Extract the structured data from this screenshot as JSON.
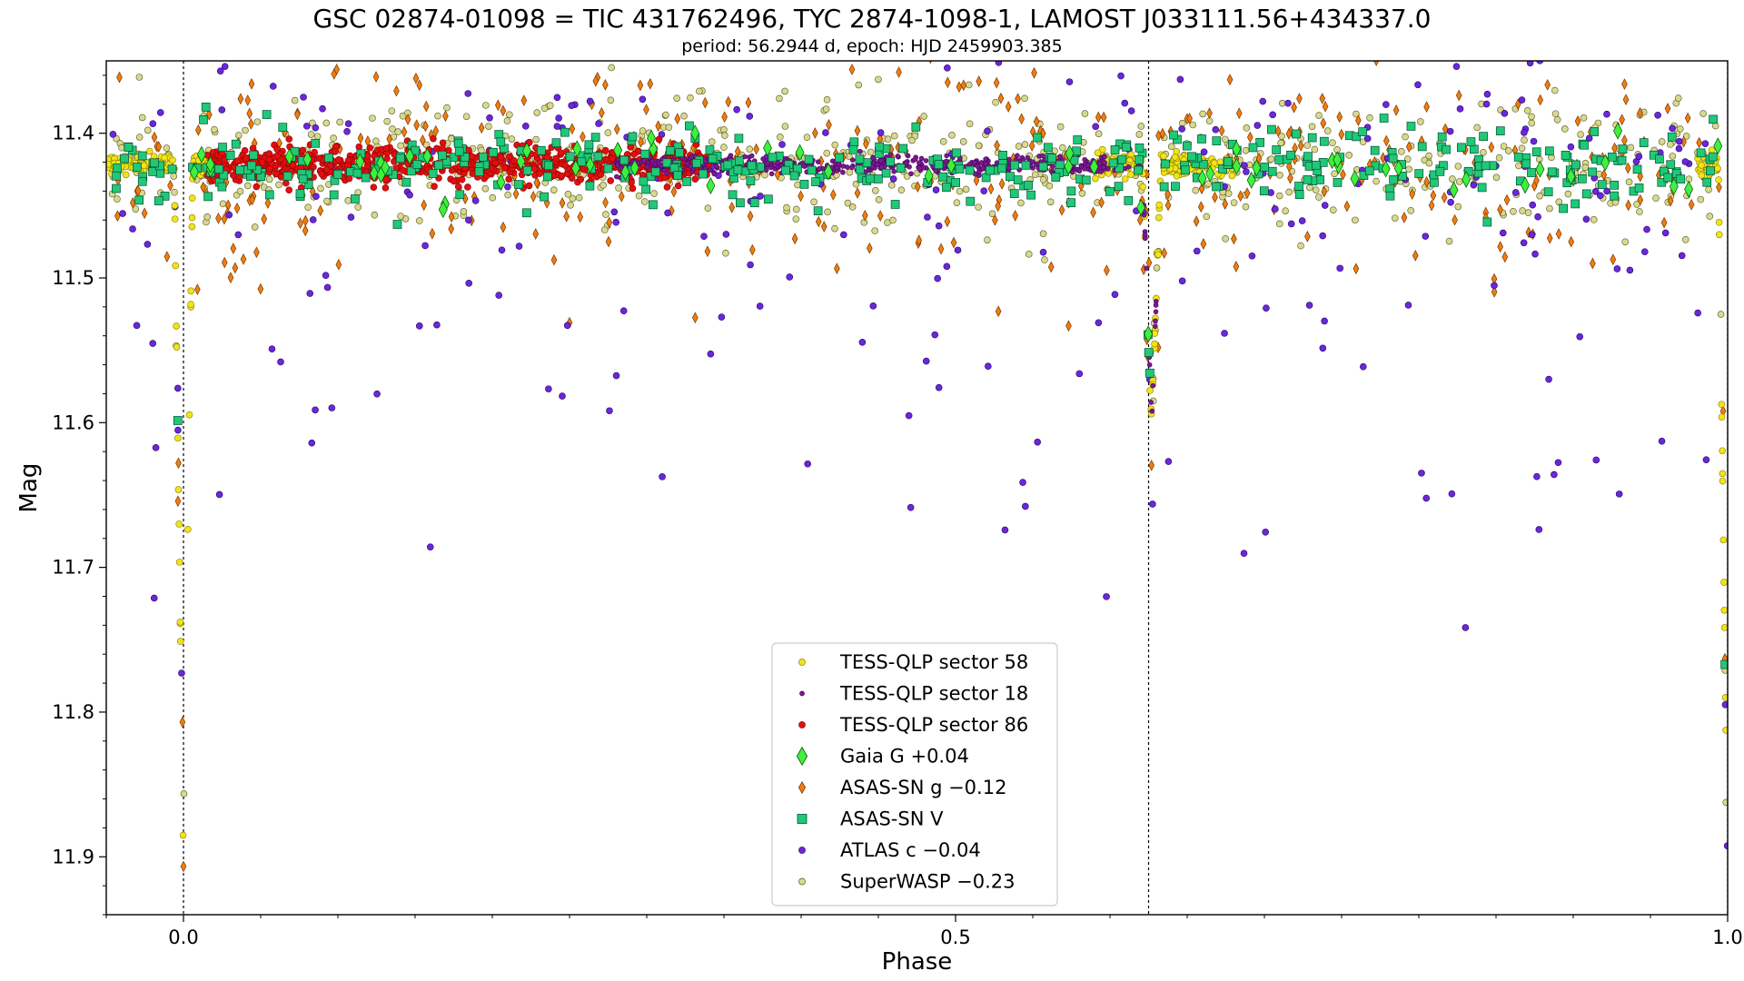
{
  "chart_data": {
    "type": "scatter",
    "title": "GSC 02874-01098 = TIC 431762496, TYC 2874-1098-1, LAMOST J033111.56+434337.0",
    "subtitle": "period: 56.2944 d, epoch: HJD 2459903.385",
    "xlabel": "Phase",
    "ylabel": "Mag",
    "xlim": [
      -0.05,
      1.0
    ],
    "ylim": [
      11.94,
      11.35
    ],
    "y_inverted": true,
    "x_ticks": [
      0.0,
      0.5,
      1.0
    ],
    "x_tick_labels": [
      "0.0",
      "0.5",
      "1.0"
    ],
    "y_ticks": [
      11.4,
      11.5,
      11.6,
      11.7,
      11.8,
      11.9
    ],
    "y_tick_labels": [
      "11.4",
      "11.5",
      "11.6",
      "11.7",
      "11.8",
      "11.9"
    ],
    "vertical_lines": [
      0.0,
      0.625,
      1.0
    ],
    "legend_position": "lower-center",
    "grid": false,
    "model": {
      "baseline_mag": 11.422,
      "primary_eclipse": {
        "phase": 0.0,
        "depth_mag": 11.9,
        "half_width": 0.006
      },
      "secondary_eclipse": {
        "phase": 0.627,
        "depth_mag": 11.6,
        "half_width": 0.006
      }
    },
    "series": [
      {
        "name": "TESS-QLP sector 58",
        "color": "#f1e41a",
        "edge": "#8a7d00",
        "marker": "circle",
        "size": 3.5,
        "ranges": [
          [
            -0.05,
            0.02
          ],
          [
            0.59,
            0.68
          ],
          [
            0.98,
            1.0
          ]
        ],
        "n": 420,
        "scatter": 0.004
      },
      {
        "name": "TESS-QLP sector 18",
        "color": "#7a1a90",
        "edge": "#4a0060",
        "marker": "circle",
        "size": 2.5,
        "ranges": [
          [
            0.28,
            0.63
          ]
        ],
        "n": 520,
        "scatter": 0.003
      },
      {
        "name": "TESS-QLP sector 86",
        "color": "#e01010",
        "edge": "#900000",
        "marker": "circle",
        "size": 3.5,
        "ranges": [
          [
            0.015,
            0.34
          ]
        ],
        "n": 700,
        "scatter": 0.006
      },
      {
        "name": "Gaia G +0.04",
        "color": "#40f040",
        "edge": "#005000",
        "marker": "diamond",
        "size": 7,
        "ranges": [
          [
            -0.05,
            1.0
          ]
        ],
        "n": 60,
        "scatter": 0.012
      },
      {
        "name": "ASAS-SN g −0.12",
        "color": "#f07d10",
        "edge": "#7a3a00",
        "marker": "diamond",
        "size": 4.5,
        "ranges": [
          [
            -0.05,
            1.0
          ]
        ],
        "n": 420,
        "scatter": 0.035
      },
      {
        "name": "ASAS-SN V",
        "color": "#20c878",
        "edge": "#005030",
        "marker": "square",
        "size": 4.5,
        "ranges": [
          [
            -0.05,
            1.0
          ]
        ],
        "n": 420,
        "scatter": 0.013
      },
      {
        "name": "ATLAS c −0.04",
        "color": "#6a28d8",
        "edge": "#2a0070",
        "marker": "circle",
        "size": 3.5,
        "ranges": [
          [
            -0.05,
            1.0
          ]
        ],
        "n": 280,
        "scatter": 0.045
      },
      {
        "name": "SuperWASP −0.23",
        "color": "#d8d890",
        "edge": "#555520",
        "marker": "circle",
        "size": 3.5,
        "ranges": [
          [
            -0.05,
            1.0
          ]
        ],
        "n": 650,
        "scatter": 0.022
      }
    ]
  }
}
